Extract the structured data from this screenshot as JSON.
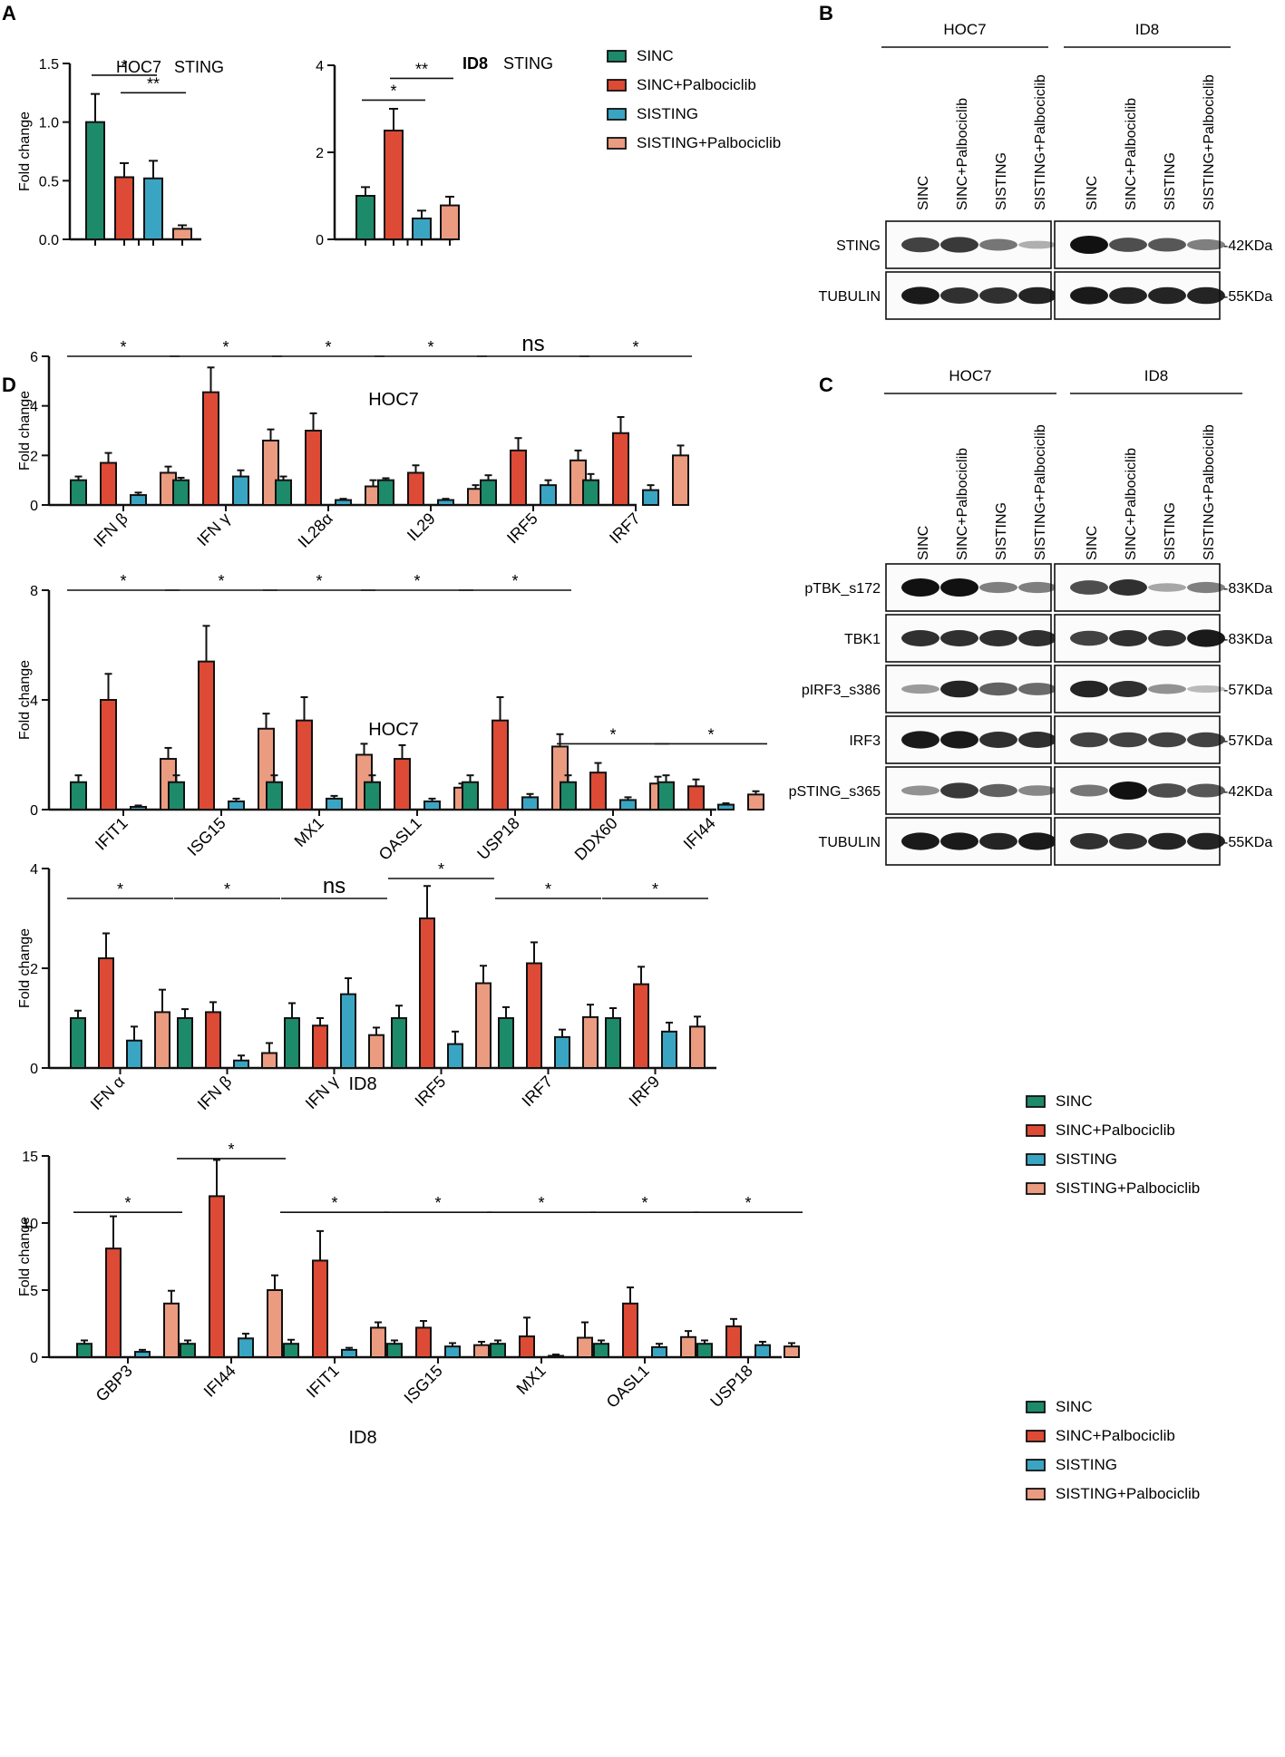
{
  "figure": {
    "panel_letters": [
      "A",
      "B",
      "C",
      "D"
    ],
    "conditions": [
      "SINC",
      "SINC+Palbociclib",
      "SISTING",
      "SISTING+Palbociclib"
    ],
    "colors": {
      "SINC": "#1d8a6a",
      "SINC+Palbociclib": "#dd4a35",
      "SISTING": "#3aa5c2",
      "SISTING+Palbociclib": "#eb9b80"
    }
  },
  "chart_data": [
    {
      "type": "bar",
      "id": "A1",
      "panel": "A",
      "title": "HOC7 STING",
      "title_parts": [
        "HOC7",
        "STING"
      ],
      "categories": [
        "STING"
      ],
      "xlabel": "",
      "ylabel": "Fold change",
      "ylim": [
        0,
        1.5
      ],
      "yticks": [
        "0.0",
        "0.5",
        "1.0",
        "1.5"
      ],
      "series": [
        {
          "name": "SINC",
          "values": [
            1.0
          ],
          "errors": [
            0.24
          ]
        },
        {
          "name": "SINC+Palbociclib",
          "values": [
            0.53
          ],
          "errors": [
            0.12
          ]
        },
        {
          "name": "SISTING",
          "values": [
            0.52
          ],
          "errors": [
            0.15
          ]
        },
        {
          "name": "SISTING+Palbociclib",
          "values": [
            0.09
          ],
          "errors": [
            0.03
          ]
        }
      ],
      "annotations": [
        {
          "label": "*",
          "from": 0,
          "to": 2,
          "y": 1.4
        },
        {
          "label": "**",
          "from": 1,
          "to": 3,
          "y": 1.25
        }
      ]
    },
    {
      "type": "bar",
      "id": "A2",
      "panel": "A",
      "title": "ID8 STING",
      "title_parts": [
        "ID8",
        "STING"
      ],
      "categories": [
        "STING"
      ],
      "xlabel": "",
      "ylabel": "",
      "ylim": [
        0,
        4
      ],
      "yticks": [
        "0",
        "2",
        "4"
      ],
      "series": [
        {
          "name": "SINC",
          "values": [
            1.0
          ],
          "errors": [
            0.2
          ]
        },
        {
          "name": "SINC+Palbociclib",
          "values": [
            2.5
          ],
          "errors": [
            0.5
          ]
        },
        {
          "name": "SISTING",
          "values": [
            0.48
          ],
          "errors": [
            0.18
          ]
        },
        {
          "name": "SISTING+Palbociclib",
          "values": [
            0.78
          ],
          "errors": [
            0.2
          ]
        }
      ],
      "annotations": [
        {
          "label": "**",
          "from": 1,
          "to": 3,
          "y": 3.7
        },
        {
          "label": "*",
          "from": 0,
          "to": 2,
          "y": 3.2
        }
      ]
    },
    {
      "type": "bar",
      "id": "D1",
      "panel": "D",
      "title": "HOC7",
      "xlabel": "",
      "ylabel": "Fold change",
      "ylim": [
        0,
        6
      ],
      "yticks": [
        "0",
        "2",
        "4",
        "6"
      ],
      "categories": [
        "IFN β",
        "IFN γ",
        "IL28α",
        "IL29",
        "IRF5",
        "IRF7"
      ],
      "series": [
        {
          "name": "SINC",
          "values": [
            1.0,
            1.0,
            1.0,
            1.0,
            1.0,
            1.0
          ],
          "errors": [
            0.15,
            0.1,
            0.15,
            0.08,
            0.2,
            0.25
          ]
        },
        {
          "name": "SINC+Palbociclib",
          "values": [
            1.7,
            4.55,
            3.0,
            1.3,
            2.2,
            2.9
          ],
          "errors": [
            0.4,
            1.0,
            0.7,
            0.3,
            0.5,
            0.65
          ]
        },
        {
          "name": "SISTING",
          "values": [
            0.4,
            1.15,
            0.2,
            0.2,
            0.8,
            0.6
          ],
          "errors": [
            0.1,
            0.25,
            0.05,
            0.05,
            0.2,
            0.2
          ]
        },
        {
          "name": "SISTING+Palbociclib",
          "values": [
            1.3,
            2.6,
            0.75,
            0.65,
            1.8,
            2.0
          ],
          "errors": [
            0.25,
            0.45,
            0.25,
            0.15,
            0.4,
            0.4
          ]
        }
      ],
      "annotations": [
        {
          "label": "*",
          "cat": 0,
          "y": 6.0
        },
        {
          "label": "*",
          "cat": 1,
          "y": 6.0
        },
        {
          "label": "*",
          "cat": 2,
          "y": 6.0
        },
        {
          "label": "*",
          "cat": 3,
          "y": 6.0
        },
        {
          "label": "ns",
          "cat": 4,
          "y": 6.0
        },
        {
          "label": "*",
          "cat": 5,
          "y": 6.0
        }
      ]
    },
    {
      "type": "bar",
      "id": "D2",
      "panel": "D",
      "title": "HOC7",
      "xlabel": "",
      "ylabel": "Fold change",
      "ylim": [
        0,
        8
      ],
      "yticks": [
        "0",
        "4",
        "8"
      ],
      "categories": [
        "IFIT1",
        "ISG15",
        "MX1",
        "OASL1",
        "USP18",
        "DDX60",
        "IFI44"
      ],
      "series": [
        {
          "name": "SINC",
          "values": [
            1.0,
            1.0,
            1.0,
            1.0,
            1.0,
            1.0,
            1.0
          ],
          "errors": [
            0.25,
            0.25,
            0.25,
            0.25,
            0.25,
            0.25,
            0.25
          ]
        },
        {
          "name": "SINC+Palbociclib",
          "values": [
            4.0,
            5.4,
            3.25,
            1.85,
            3.25,
            1.35,
            0.85
          ],
          "errors": [
            0.95,
            1.3,
            0.85,
            0.5,
            0.85,
            0.35,
            0.25
          ]
        },
        {
          "name": "SISTING",
          "values": [
            0.1,
            0.3,
            0.4,
            0.3,
            0.45,
            0.35,
            0.18
          ],
          "errors": [
            0.05,
            0.1,
            0.1,
            0.1,
            0.12,
            0.1,
            0.05
          ]
        },
        {
          "name": "SISTING+Palbociclib",
          "values": [
            1.85,
            2.95,
            2.0,
            0.8,
            2.3,
            0.95,
            0.55
          ],
          "errors": [
            0.4,
            0.55,
            0.4,
            0.15,
            0.45,
            0.25,
            0.12
          ]
        }
      ],
      "annotations": [
        {
          "label": "*",
          "cat": 0,
          "y": 8.0
        },
        {
          "label": "*",
          "cat": 1,
          "y": 8.0
        },
        {
          "label": "*",
          "cat": 2,
          "y": 8.0
        },
        {
          "label": "*",
          "cat": 3,
          "y": 8.0
        },
        {
          "label": "*",
          "cat": 4,
          "y": 8.0
        },
        {
          "label": "*",
          "cat": 5,
          "y": 2.4
        },
        {
          "label": "*",
          "cat": 6,
          "y": 2.4
        }
      ]
    },
    {
      "type": "bar",
      "id": "D3",
      "panel": "D",
      "title": "ID8",
      "xlabel": "",
      "ylabel": "Fold change",
      "ylim": [
        0,
        4
      ],
      "yticks": [
        "0",
        "2",
        "4"
      ],
      "categories": [
        "IFN α",
        "IFN β",
        "IFN γ",
        "IRF5",
        "IRF7",
        "IRF9"
      ],
      "series": [
        {
          "name": "SINC",
          "values": [
            1.0,
            1.0,
            1.0,
            1.0,
            1.0,
            1.0
          ],
          "errors": [
            0.15,
            0.18,
            0.3,
            0.25,
            0.22,
            0.2
          ]
        },
        {
          "name": "SINC+Palbociclib",
          "values": [
            2.2,
            1.12,
            0.85,
            3.0,
            2.1,
            1.68
          ],
          "errors": [
            0.5,
            0.2,
            0.15,
            0.65,
            0.42,
            0.35
          ]
        },
        {
          "name": "SISTING",
          "values": [
            0.55,
            0.15,
            1.48,
            0.48,
            0.62,
            0.73
          ],
          "errors": [
            0.28,
            0.1,
            0.32,
            0.25,
            0.15,
            0.18
          ]
        },
        {
          "name": "SISTING+Palbociclib",
          "values": [
            1.12,
            0.3,
            0.66,
            1.7,
            1.02,
            0.83
          ],
          "errors": [
            0.45,
            0.2,
            0.15,
            0.35,
            0.25,
            0.2
          ]
        }
      ],
      "annotations": [
        {
          "label": "*",
          "cat": 0,
          "y": 3.4
        },
        {
          "label": "*",
          "cat": 1,
          "y": 3.4
        },
        {
          "label": "ns",
          "cat": 2,
          "y": 3.4
        },
        {
          "label": "*",
          "cat": 3,
          "y": 3.8
        },
        {
          "label": "*",
          "cat": 4,
          "y": 3.4
        },
        {
          "label": "*",
          "cat": 5,
          "y": 3.4
        }
      ]
    },
    {
      "type": "bar",
      "id": "D4",
      "panel": "D",
      "title": "ID8",
      "xlabel": "",
      "ylabel": "Fold change",
      "ylim": [
        0,
        15
      ],
      "yticks": [
        "0",
        "5",
        "10",
        "15"
      ],
      "categories": [
        "GBP3",
        "IFI44",
        "IFIT1",
        "ISG15",
        "MX1",
        "OASL1",
        "USP18"
      ],
      "series": [
        {
          "name": "SINC",
          "values": [
            1.0,
            1.0,
            1.0,
            1.0,
            1.0,
            1.0,
            1.0
          ],
          "errors": [
            0.25,
            0.25,
            0.3,
            0.25,
            0.25,
            0.25,
            0.25
          ]
        },
        {
          "name": "SINC+Palbociclib",
          "values": [
            8.1,
            12.0,
            7.2,
            2.2,
            1.55,
            4.0,
            2.3
          ],
          "errors": [
            2.4,
            2.7,
            2.2,
            0.5,
            1.4,
            1.2,
            0.55
          ]
        },
        {
          "name": "SISTING",
          "values": [
            0.4,
            1.4,
            0.55,
            0.8,
            0.1,
            0.75,
            0.9
          ],
          "errors": [
            0.15,
            0.35,
            0.15,
            0.25,
            0.1,
            0.25,
            0.25
          ]
        },
        {
          "name": "SISTING+Palbociclib",
          "values": [
            4.0,
            5.0,
            2.2,
            0.9,
            1.45,
            1.5,
            0.8
          ],
          "errors": [
            0.95,
            1.1,
            0.4,
            0.25,
            1.15,
            0.45,
            0.25
          ]
        }
      ],
      "annotations": [
        {
          "label": "*",
          "cat": 0,
          "y": 10.8
        },
        {
          "label": "*",
          "cat": 1,
          "y": 14.8
        },
        {
          "label": "*",
          "cat": 2,
          "y": 10.8
        },
        {
          "label": "*",
          "cat": 3,
          "y": 10.8
        },
        {
          "label": "*",
          "cat": 4,
          "y": 10.8
        },
        {
          "label": "*",
          "cat": 5,
          "y": 10.8
        },
        {
          "label": "*",
          "cat": 6,
          "y": 10.8
        }
      ]
    }
  ],
  "blots": {
    "B": {
      "cell_lines": [
        "HOC7",
        "ID8"
      ],
      "lanes": [
        "SINC",
        "SINC+Palbociclib",
        "SISTING",
        "SISTING+Palbociclib"
      ],
      "rows": [
        {
          "label": "STING",
          "marker": "-42KDa",
          "hoc7": [
            0.75,
            0.8,
            0.5,
            0.2
          ],
          "id8": [
            1.0,
            0.7,
            0.65,
            0.45
          ]
        },
        {
          "label": "TUBULIN",
          "marker": "-55KDa",
          "hoc7": [
            0.95,
            0.85,
            0.85,
            0.9
          ],
          "id8": [
            0.95,
            0.9,
            0.9,
            0.9
          ]
        }
      ]
    },
    "C": {
      "cell_lines": [
        "HOC7",
        "ID8"
      ],
      "lanes": [
        "SINC",
        "SINC+Palbociclib",
        "SISTING",
        "SISTING+Palbociclib"
      ],
      "rows": [
        {
          "label": "pTBK_s172",
          "marker": "-83KDa",
          "hoc7": [
            1.0,
            1.0,
            0.45,
            0.45
          ],
          "id8": [
            0.7,
            0.85,
            0.25,
            0.45
          ]
        },
        {
          "label": "TBK1",
          "marker": "-83KDa",
          "hoc7": [
            0.85,
            0.85,
            0.85,
            0.85
          ],
          "id8": [
            0.75,
            0.85,
            0.85,
            0.95
          ]
        },
        {
          "label": "pIRF3_s386",
          "marker": "-57KDa",
          "hoc7": [
            0.3,
            0.9,
            0.6,
            0.55
          ],
          "id8": [
            0.9,
            0.85,
            0.35,
            0.15
          ]
        },
        {
          "label": "IRF3",
          "marker": "-57KDa",
          "hoc7": [
            0.95,
            0.95,
            0.85,
            0.85
          ],
          "id8": [
            0.75,
            0.75,
            0.75,
            0.75
          ]
        },
        {
          "label": "pSTING_s365",
          "marker": "-42KDa",
          "hoc7": [
            0.35,
            0.8,
            0.6,
            0.4
          ],
          "id8": [
            0.5,
            1.0,
            0.7,
            0.65
          ]
        },
        {
          "label": "TUBULIN",
          "marker": "-55KDa",
          "hoc7": [
            0.95,
            0.95,
            0.9,
            0.95
          ],
          "id8": [
            0.85,
            0.85,
            0.9,
            0.9
          ]
        }
      ]
    }
  }
}
